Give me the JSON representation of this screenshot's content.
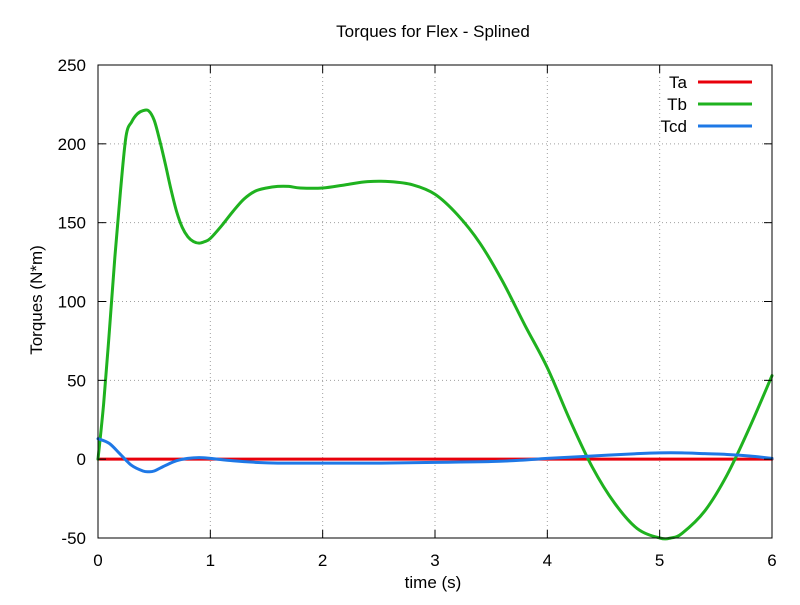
{
  "chart_data": {
    "type": "line",
    "title": "Torques for Flex - Splined",
    "xlabel": "time (s)",
    "ylabel": "Torques (N*m)",
    "xlim": [
      0,
      6
    ],
    "ylim": [
      -50,
      250
    ],
    "xticks": [
      0,
      1,
      2,
      3,
      4,
      5,
      6
    ],
    "yticks": [
      -50,
      0,
      50,
      100,
      150,
      200,
      250
    ],
    "grid": true,
    "legend_position": "top-right",
    "series": [
      {
        "name": "Ta",
        "color": "#e8000b",
        "x": [
          0,
          6
        ],
        "y": [
          0,
          0
        ]
      },
      {
        "name": "Tb",
        "color": "#1fb21f",
        "x": [
          0,
          0.05,
          0.1,
          0.15,
          0.2,
          0.25,
          0.3,
          0.35,
          0.4,
          0.45,
          0.5,
          0.55,
          0.6,
          0.65,
          0.7,
          0.75,
          0.8,
          0.85,
          0.9,
          0.95,
          1.0,
          1.1,
          1.2,
          1.3,
          1.4,
          1.5,
          1.6,
          1.7,
          1.8,
          2.0,
          2.2,
          2.4,
          2.6,
          2.8,
          3.0,
          3.2,
          3.4,
          3.6,
          3.8,
          4.0,
          4.2,
          4.4,
          4.6,
          4.8,
          5.0,
          5.1,
          5.2,
          5.4,
          5.6,
          5.8,
          6.0
        ],
        "y": [
          0,
          35,
          80,
          128,
          170,
          205,
          214,
          219,
          221,
          221,
          215,
          202,
          187,
          171,
          157,
          147,
          141,
          138,
          137,
          138,
          140,
          148,
          157,
          165,
          170,
          172,
          173,
          173,
          172,
          172,
          174,
          176,
          176,
          174,
          168,
          155,
          137,
          113,
          85,
          58,
          25,
          -5,
          -28,
          -44,
          -50,
          -50,
          -47,
          -33,
          -10,
          20,
          53
        ]
      },
      {
        "name": "Tcd",
        "color": "#1e78e6",
        "x": [
          0,
          0.1,
          0.2,
          0.3,
          0.4,
          0.45,
          0.5,
          0.6,
          0.7,
          0.8,
          0.9,
          1.0,
          1.2,
          1.4,
          1.6,
          2.0,
          2.5,
          3.0,
          3.5,
          3.8,
          4.0,
          4.4,
          4.8,
          5.0,
          5.2,
          5.4,
          5.6,
          5.8,
          6.0
        ],
        "y": [
          13,
          10,
          3,
          -4,
          -7.5,
          -8,
          -7.5,
          -4,
          -1,
          0.5,
          1,
          0.5,
          -1,
          -2,
          -2.5,
          -2.5,
          -2.5,
          -2,
          -1.5,
          -0.5,
          0.5,
          2,
          3.5,
          4,
          4,
          3.5,
          3,
          2,
          0.5
        ]
      }
    ]
  }
}
